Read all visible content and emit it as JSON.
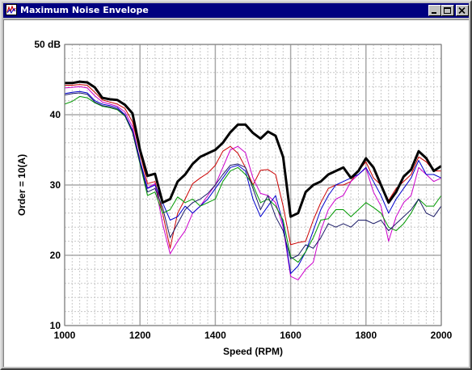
{
  "window": {
    "title": "Maximum Noise Envelope",
    "minimize_icon": "minimize-icon",
    "maximize_icon": "maximize-icon",
    "close_icon": "close-icon",
    "app_icon": "waveform-app-icon",
    "title_bar_color": "#000080"
  },
  "chart_data": {
    "type": "line",
    "title": "",
    "xlabel": "Speed (RPM)",
    "ylabel": "Order = 10(A)",
    "xlim": [
      1000,
      2000
    ],
    "ylim": [
      10,
      50
    ],
    "x_ticks": [
      1000,
      1200,
      1400,
      1600,
      1800,
      2000
    ],
    "x_tick_labels": [
      "1000",
      "1200",
      "1400",
      "1600",
      "1800",
      "2000"
    ],
    "y_ticks": [
      10,
      20,
      30,
      40,
      50
    ],
    "y_tick_labels": [
      "10",
      "20",
      "30",
      "40",
      "50 dB"
    ],
    "grid": true,
    "legend": "none",
    "series": [
      {
        "color": "#000000",
        "width": 3,
        "x": [
          1000,
          1020,
          1040,
          1060,
          1080,
          1100,
          1120,
          1140,
          1160,
          1180,
          1200,
          1220,
          1240,
          1260,
          1280,
          1300,
          1320,
          1340,
          1360,
          1380,
          1400,
          1420,
          1440,
          1460,
          1480,
          1500,
          1520,
          1540,
          1560,
          1580,
          1600,
          1620,
          1640,
          1660,
          1680,
          1700,
          1720,
          1740,
          1760,
          1780,
          1800,
          1820,
          1840,
          1860,
          1880,
          1900,
          1920,
          1940,
          1960,
          1980,
          2000
        ],
        "y": [
          44.5,
          44.5,
          44.7,
          44.6,
          43.9,
          42.4,
          42.2,
          42.1,
          41.4,
          40.2,
          35.0,
          31.3,
          31.6,
          27.5,
          28.0,
          30.5,
          31.5,
          33.0,
          34.0,
          34.5,
          35.0,
          36.0,
          37.5,
          38.6,
          38.6,
          37.4,
          36.6,
          37.6,
          37.0,
          34.0,
          25.5,
          26.0,
          29.0,
          30.0,
          30.5,
          31.5,
          32.0,
          32.5,
          31.0,
          32.0,
          33.8,
          32.5,
          30.0,
          27.5,
          29.0,
          31.2,
          32.2,
          34.8,
          33.8,
          32.0,
          32.7
        ]
      },
      {
        "color": "#cc0000",
        "width": 1,
        "x": [
          1000,
          1020,
          1040,
          1060,
          1080,
          1100,
          1120,
          1140,
          1160,
          1180,
          1200,
          1220,
          1240,
          1260,
          1280,
          1300,
          1320,
          1340,
          1360,
          1380,
          1400,
          1420,
          1440,
          1460,
          1480,
          1500,
          1520,
          1540,
          1560,
          1580,
          1600,
          1620,
          1640,
          1660,
          1680,
          1700,
          1720,
          1740,
          1760,
          1780,
          1800,
          1820,
          1840,
          1860,
          1880,
          1900,
          1920,
          1940,
          1960,
          1980,
          2000
        ],
        "y": [
          44.2,
          44.2,
          44.3,
          44.2,
          43.2,
          42.1,
          41.8,
          41.5,
          40.9,
          39.0,
          34.5,
          30.2,
          30.5,
          26.0,
          21.0,
          26.0,
          28.0,
          30.2,
          31.0,
          31.7,
          32.8,
          34.8,
          35.5,
          34.5,
          32.5,
          30.0,
          32.1,
          32.2,
          31.5,
          27.0,
          21.5,
          21.8,
          22.0,
          25.0,
          27.5,
          29.5,
          30.0,
          30.0,
          30.5,
          32.0,
          33.3,
          31.0,
          30.0,
          27.8,
          29.5,
          30.5,
          31.5,
          34.0,
          33.3,
          32.0,
          32.0
        ]
      },
      {
        "color": "#cc00cc",
        "width": 1,
        "x": [
          1000,
          1020,
          1040,
          1060,
          1080,
          1100,
          1120,
          1140,
          1160,
          1180,
          1200,
          1220,
          1240,
          1260,
          1280,
          1300,
          1320,
          1340,
          1360,
          1380,
          1400,
          1420,
          1440,
          1460,
          1480,
          1500,
          1520,
          1540,
          1560,
          1580,
          1600,
          1620,
          1640,
          1660,
          1680,
          1700,
          1720,
          1740,
          1760,
          1780,
          1800,
          1820,
          1840,
          1860,
          1880,
          1900,
          1920,
          1940,
          1960,
          1980,
          2000
        ],
        "y": [
          43.8,
          43.9,
          44.0,
          43.8,
          42.7,
          41.8,
          41.5,
          41.2,
          40.4,
          38.3,
          33.5,
          29.6,
          30.2,
          24.5,
          20.2,
          22.0,
          23.5,
          26.0,
          27.0,
          28.5,
          30.0,
          32.5,
          35.0,
          35.5,
          34.6,
          31.0,
          28.8,
          28.5,
          27.5,
          24.0,
          17.0,
          16.5,
          18.0,
          19.0,
          23.5,
          26.5,
          28.0,
          28.5,
          30.5,
          31.5,
          32.4,
          29.0,
          27.0,
          22.0,
          25.5,
          27.5,
          28.5,
          32.5,
          31.5,
          30.5,
          31.0
        ]
      },
      {
        "color": "#0000cc",
        "width": 1,
        "x": [
          1000,
          1020,
          1040,
          1060,
          1080,
          1100,
          1120,
          1140,
          1160,
          1180,
          1200,
          1220,
          1240,
          1260,
          1280,
          1300,
          1320,
          1340,
          1360,
          1380,
          1400,
          1420,
          1440,
          1460,
          1480,
          1500,
          1520,
          1540,
          1560,
          1580,
          1600,
          1620,
          1640,
          1660,
          1680,
          1700,
          1720,
          1740,
          1760,
          1780,
          1800,
          1820,
          1840,
          1860,
          1880,
          1900,
          1920,
          1940,
          1960,
          1980,
          2000
        ],
        "y": [
          43.0,
          43.2,
          43.3,
          43.1,
          42.0,
          41.5,
          41.3,
          41.0,
          40.0,
          37.8,
          33.5,
          29.5,
          30.0,
          27.5,
          25.0,
          25.5,
          27.0,
          26.0,
          27.0,
          28.0,
          29.5,
          31.0,
          32.5,
          32.8,
          32.0,
          28.0,
          25.5,
          27.0,
          28.5,
          24.5,
          17.4,
          18.5,
          20.5,
          23.5,
          26.5,
          28.5,
          30.0,
          30.5,
          31.0,
          31.5,
          32.5,
          30.5,
          28.5,
          26.0,
          28.0,
          29.5,
          31.0,
          33.5,
          31.5,
          31.5,
          31.0
        ]
      },
      {
        "color": "#009900",
        "width": 1,
        "x": [
          1000,
          1020,
          1040,
          1060,
          1080,
          1100,
          1120,
          1140,
          1160,
          1180,
          1200,
          1220,
          1240,
          1260,
          1280,
          1300,
          1320,
          1340,
          1360,
          1380,
          1400,
          1420,
          1440,
          1460,
          1480,
          1500,
          1520,
          1540,
          1560,
          1580,
          1600,
          1620,
          1640,
          1660,
          1680,
          1700,
          1720,
          1740,
          1760,
          1780,
          1800,
          1820,
          1840,
          1860,
          1880,
          1900,
          1920,
          1940,
          1960,
          1980,
          2000
        ],
        "y": [
          41.5,
          41.9,
          42.6,
          42.4,
          41.7,
          41.2,
          41.0,
          40.7,
          39.8,
          37.5,
          33.0,
          28.5,
          29.0,
          26.0,
          26.5,
          28.3,
          27.5,
          28.0,
          27.0,
          27.5,
          28.0,
          30.5,
          32.0,
          32.5,
          31.5,
          30.0,
          27.5,
          28.0,
          27.0,
          25.0,
          19.8,
          19.0,
          20.5,
          22.5,
          25.0,
          25.2,
          26.5,
          26.5,
          25.5,
          26.5,
          27.5,
          26.8,
          26.0,
          24.0,
          23.5,
          24.5,
          26.0,
          28.0,
          27.0,
          27.0,
          28.5
        ]
      },
      {
        "color": "#1a1a66",
        "width": 1,
        "x": [
          1000,
          1020,
          1040,
          1060,
          1080,
          1100,
          1120,
          1140,
          1160,
          1180,
          1200,
          1220,
          1240,
          1260,
          1280,
          1300,
          1320,
          1340,
          1360,
          1380,
          1400,
          1420,
          1440,
          1460,
          1480,
          1500,
          1520,
          1540,
          1560,
          1580,
          1600,
          1620,
          1640,
          1660,
          1680,
          1700,
          1720,
          1740,
          1760,
          1780,
          1800,
          1820,
          1840,
          1860,
          1880,
          1900,
          1920,
          1940,
          1960,
          1980,
          2000
        ],
        "y": [
          42.8,
          43.0,
          43.1,
          42.9,
          41.8,
          41.3,
          41.1,
          40.8,
          39.9,
          37.6,
          33.2,
          29.0,
          29.5,
          26.8,
          22.5,
          24.5,
          26.5,
          27.5,
          28.0,
          28.8,
          30.0,
          31.5,
          32.8,
          33.0,
          32.5,
          29.5,
          26.5,
          28.5,
          25.5,
          23.5,
          19.5,
          20.0,
          21.5,
          21.0,
          22.5,
          24.5,
          24.0,
          24.5,
          24.0,
          25.0,
          25.0,
          24.5,
          25.0,
          23.5,
          24.5,
          25.5,
          26.5,
          28.0,
          26.0,
          25.5,
          27.0
        ]
      }
    ]
  }
}
